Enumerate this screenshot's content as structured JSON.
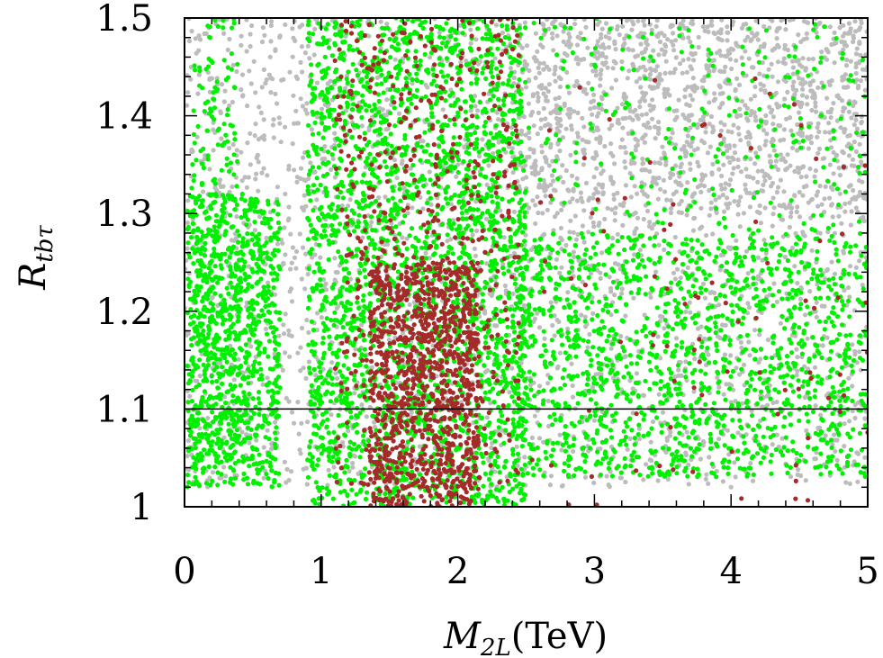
{
  "chart_data": {
    "type": "scatter",
    "title": "",
    "xlabel": {
      "main": "M",
      "sub": "2L",
      "unit": "(TeV)"
    },
    "ylabel": {
      "main": "R",
      "sub": "tbτ"
    },
    "xlim": [
      0,
      5
    ],
    "ylim": [
      1,
      1.5
    ],
    "xticks": [
      0,
      1,
      2,
      3,
      4,
      5
    ],
    "xtick_labels": [
      "0",
      "1",
      "2",
      "3",
      "4",
      "5"
    ],
    "yticks": [
      1,
      1.1,
      1.2,
      1.3,
      1.4,
      1.5
    ],
    "ytick_labels": [
      "1",
      "1.1",
      "1.2",
      "1.3",
      "1.4",
      "1.5"
    ],
    "grid": false,
    "reference_line": {
      "y": 1.1,
      "color": "#000000"
    },
    "series": [
      {
        "color": "#bcbcbc",
        "regions": [
          {
            "x": [
              0,
              5
            ],
            "y": [
              1.02,
              1.5
            ],
            "density": 2600
          },
          {
            "x": [
              2.4,
              5
            ],
            "y": [
              1.3,
              1.5
            ],
            "density": 900
          }
        ]
      },
      {
        "color": "#00f000",
        "regions": [
          {
            "x": [
              0.02,
              0.7
            ],
            "y": [
              1.02,
              1.32
            ],
            "density": 900
          },
          {
            "x": [
              0.05,
              0.4
            ],
            "y": [
              1.05,
              1.5
            ],
            "density": 250
          },
          {
            "x": [
              0.9,
              2.5
            ],
            "y": [
              1.0,
              1.5
            ],
            "density": 2600
          },
          {
            "x": [
              2.4,
              5.0
            ],
            "y": [
              1.03,
              1.28
            ],
            "density": 1500
          },
          {
            "x": [
              2.4,
              5.0
            ],
            "y": [
              1.28,
              1.5
            ],
            "density": 220
          }
        ]
      },
      {
        "color": "#a52a2a",
        "regions": [
          {
            "x": [
              1.35,
              2.15
            ],
            "y": [
              1.0,
              1.25
            ],
            "density": 1000
          },
          {
            "x": [
              1.1,
              2.45
            ],
            "y": [
              1.02,
              1.5
            ],
            "density": 550
          },
          {
            "x": [
              2.5,
              5.0
            ],
            "y": [
              1.0,
              1.45
            ],
            "density": 90
          }
        ]
      }
    ]
  }
}
